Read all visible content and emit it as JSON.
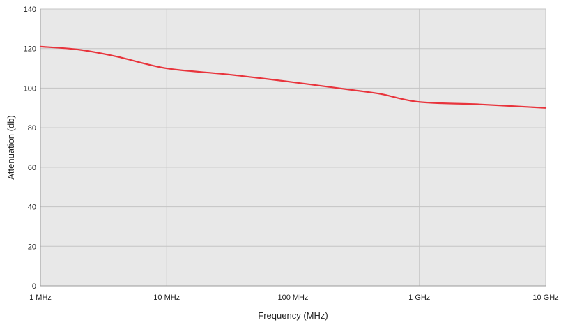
{
  "chart_data": {
    "type": "line",
    "title": "",
    "xlabel": "Frequency (MHz)",
    "ylabel": "Attenuation (db)",
    "x_scale": "log",
    "xlim": [
      1,
      10000
    ],
    "ylim": [
      0,
      140
    ],
    "grid": true,
    "legend": "none",
    "x_ticks": [
      {
        "value": 1,
        "label": "1 MHz"
      },
      {
        "value": 10,
        "label": "10 MHz"
      },
      {
        "value": 100,
        "label": "100 MHz"
      },
      {
        "value": 1000,
        "label": "1 GHz"
      },
      {
        "value": 10000,
        "label": "10 GHz"
      }
    ],
    "y_ticks": [
      {
        "value": 0,
        "label": "0"
      },
      {
        "value": 20,
        "label": "20"
      },
      {
        "value": 40,
        "label": "40"
      },
      {
        "value": 60,
        "label": "60"
      },
      {
        "value": 80,
        "label": "80"
      },
      {
        "value": 100,
        "label": "100"
      },
      {
        "value": 120,
        "label": "120"
      },
      {
        "value": 140,
        "label": "140"
      }
    ],
    "series": [
      {
        "color": "#e8343c",
        "x": [
          1,
          2,
          4,
          10,
          30,
          100,
          300,
          500,
          1000,
          3000,
          10000
        ],
        "y": [
          121,
          119.5,
          116,
          110,
          107,
          103,
          99,
          97,
          93,
          91.8,
          90
        ]
      }
    ],
    "colors": {
      "plot_background": "#e8e8e8",
      "gridline": "#c4c4c4",
      "axis": "#9a9a9a"
    }
  }
}
